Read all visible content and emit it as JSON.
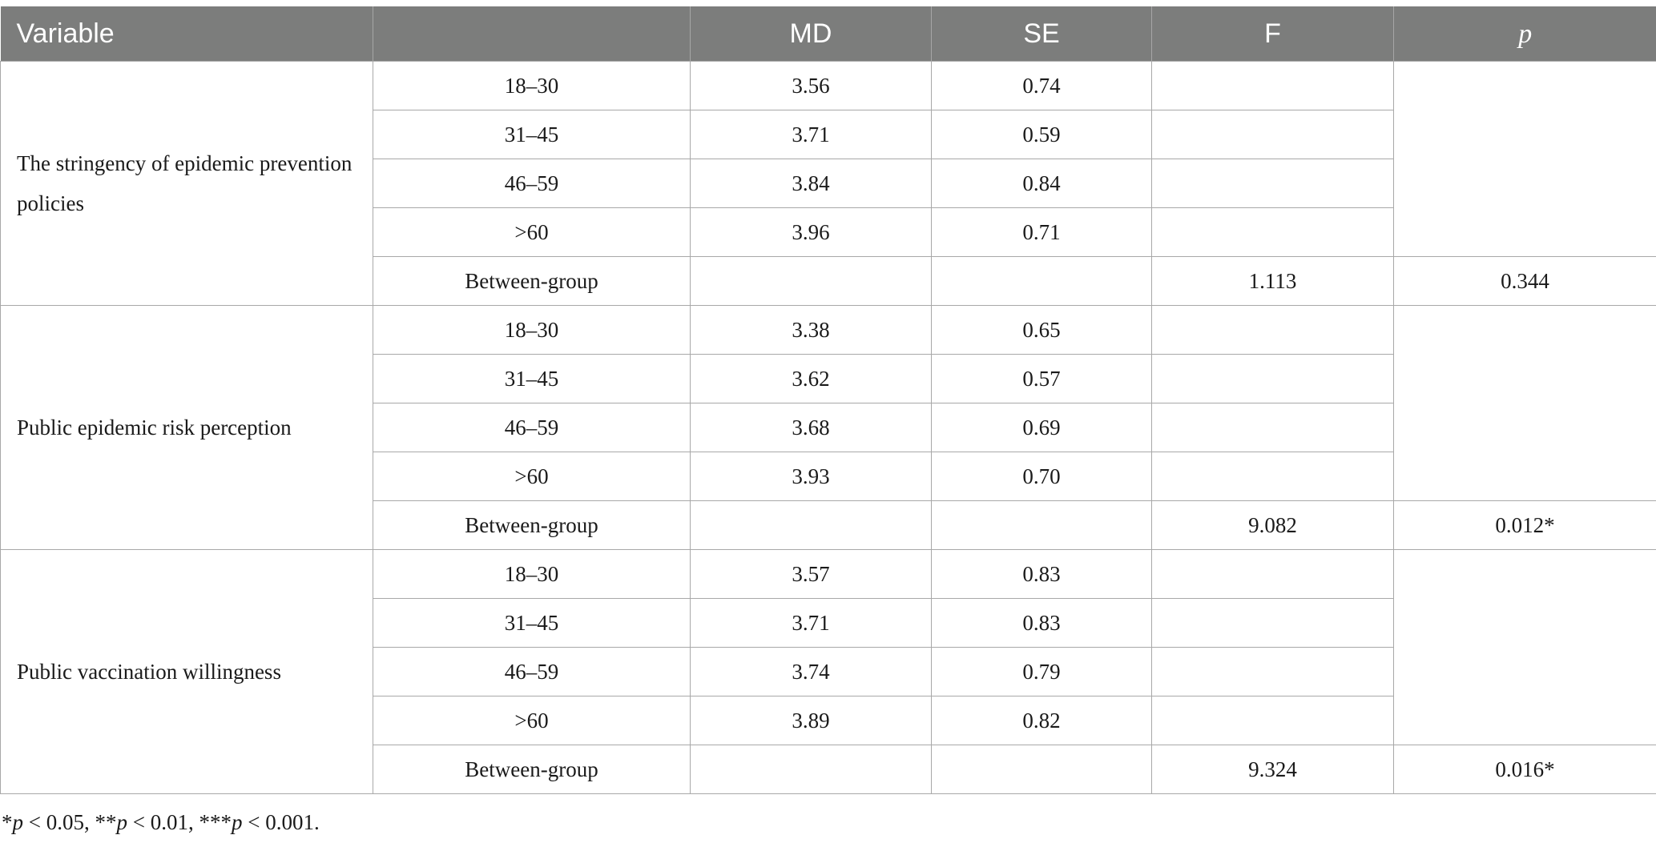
{
  "table": {
    "headers": {
      "variable": "Variable",
      "group": "",
      "md": "MD",
      "se": "SE",
      "f": "F",
      "p": "p"
    },
    "sections": [
      {
        "variable": "The stringency of epidemic prevention policies",
        "rows": [
          {
            "group": "18–30",
            "md": "3.56",
            "se": "0.74"
          },
          {
            "group": "31–45",
            "md": "3.71",
            "se": "0.59"
          },
          {
            "group": "46–59",
            "md": "3.84",
            "se": "0.84"
          },
          {
            "group": ">60",
            "md": "3.96",
            "se": "0.71"
          }
        ],
        "between": {
          "label": "Between-group",
          "f": "1.113",
          "p": "0.344"
        }
      },
      {
        "variable": "Public epidemic risk perception",
        "rows": [
          {
            "group": "18–30",
            "md": "3.38",
            "se": "0.65"
          },
          {
            "group": "31–45",
            "md": "3.62",
            "se": "0.57"
          },
          {
            "group": "46–59",
            "md": "3.68",
            "se": "0.69"
          },
          {
            "group": ">60",
            "md": "3.93",
            "se": "0.70"
          }
        ],
        "between": {
          "label": "Between-group",
          "f": "9.082",
          "p": "0.012*"
        }
      },
      {
        "variable": "Public vaccination willingness",
        "rows": [
          {
            "group": "18–30",
            "md": "3.57",
            "se": "0.83"
          },
          {
            "group": "31–45",
            "md": "3.71",
            "se": "0.83"
          },
          {
            "group": "46–59",
            "md": "3.74",
            "se": "0.79"
          },
          {
            "group": ">60",
            "md": "3.89",
            "se": "0.82"
          }
        ],
        "between": {
          "label": "Between-group",
          "f": "9.324",
          "p": "0.016*"
        }
      }
    ]
  },
  "footnote": {
    "parts": [
      {
        "text": "*",
        "italic": false
      },
      {
        "text": "p",
        "italic": true
      },
      {
        "text": " < 0.05, **",
        "italic": false
      },
      {
        "text": "p",
        "italic": true
      },
      {
        "text": " < 0.01, ***",
        "italic": false
      },
      {
        "text": "p",
        "italic": true
      },
      {
        "text": " < 0.001.",
        "italic": false
      }
    ]
  }
}
